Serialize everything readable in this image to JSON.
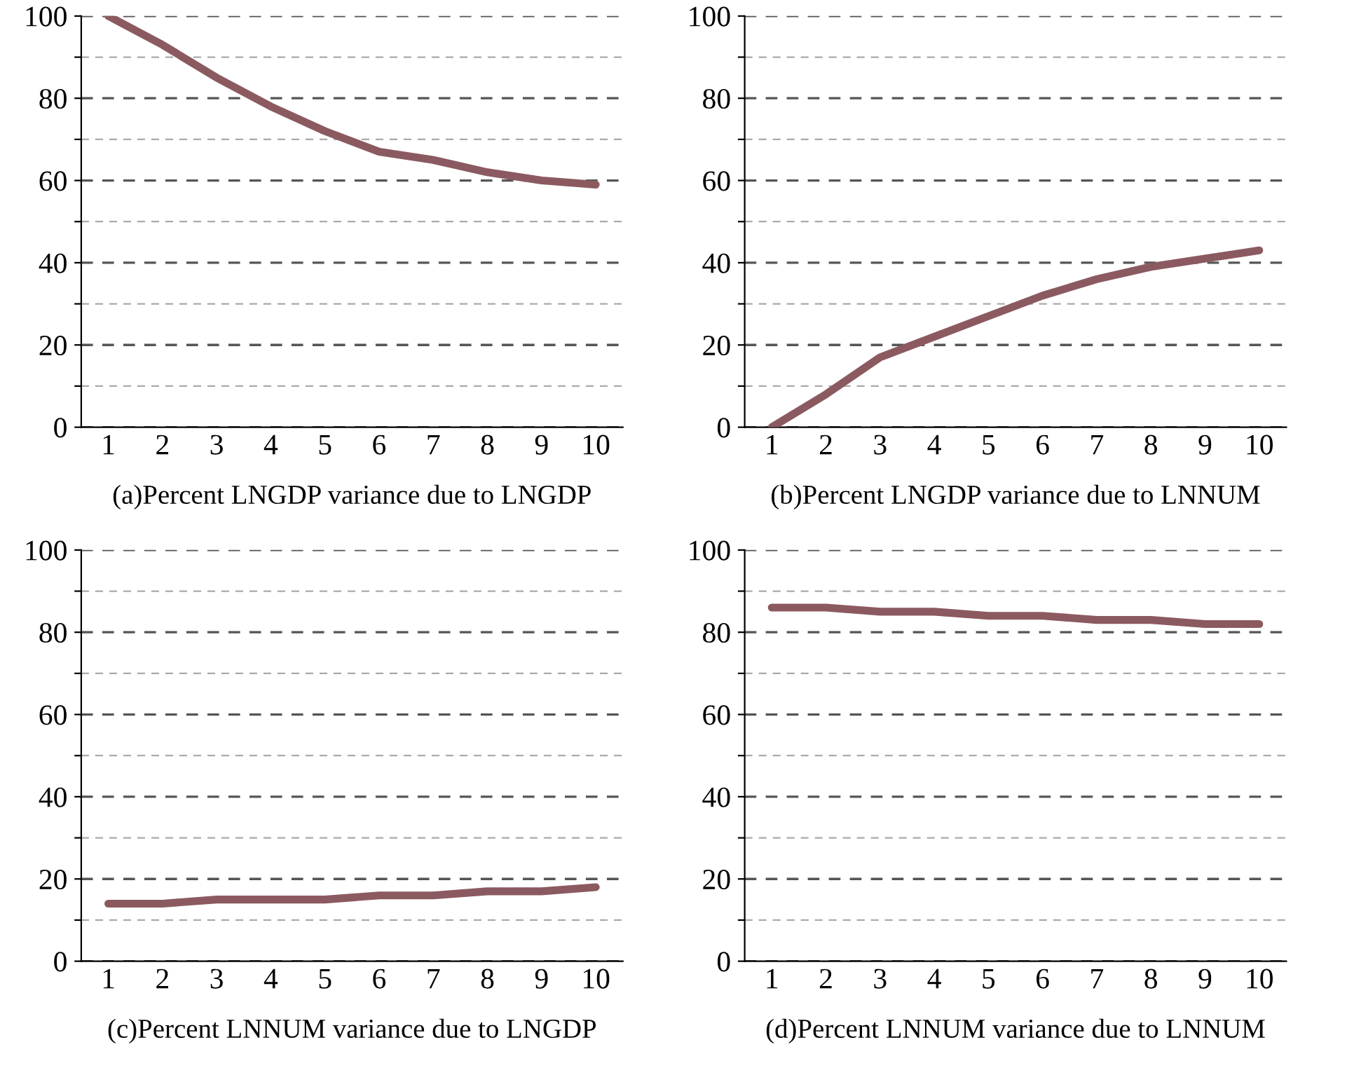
{
  "chart_data": [
    {
      "type": "line",
      "title": "(a)Percent LNGDP variance due to LNGDP",
      "categories": [
        "1",
        "2",
        "3",
        "4",
        "5",
        "6",
        "7",
        "8",
        "9",
        "10"
      ],
      "series": [
        {
          "color": "#8b5a60",
          "values": [
            100,
            93,
            85,
            78,
            72,
            67,
            65,
            62,
            60,
            59
          ]
        }
      ],
      "ylim": [
        0,
        100
      ],
      "yticks": [
        0,
        {
          "value": 10,
          "label": null
        },
        20,
        {
          "value": 30,
          "label": null
        },
        40,
        {
          "value": 50,
          "label": null
        },
        60,
        {
          "value": 70,
          "label": null
        },
        80,
        {
          "value": 90,
          "label": null
        },
        100
      ],
      "grid": "y",
      "line_style": "solid"
    },
    {
      "type": "line",
      "title": "(b)Percent LNGDP variance due to LNNUM",
      "categories": [
        "1",
        "2",
        "3",
        "4",
        "5",
        "6",
        "7",
        "8",
        "9",
        "10"
      ],
      "series": [
        {
          "color": "#8b5a60",
          "values": [
            0,
            8,
            17,
            22,
            27,
            32,
            36,
            39,
            41,
            43
          ]
        }
      ],
      "ylim": [
        0,
        100
      ],
      "yticks": [
        0,
        {
          "value": 10,
          "label": null
        },
        20,
        {
          "value": 30,
          "label": null
        },
        40,
        {
          "value": 50,
          "label": null
        },
        60,
        {
          "value": 70,
          "label": null
        },
        80,
        {
          "value": 90,
          "label": null
        },
        100
      ],
      "grid": "y",
      "line_style": "solid"
    },
    {
      "type": "line",
      "title": "(c)Percent LNNUM variance due to LNGDP",
      "categories": [
        "1",
        "2",
        "3",
        "4",
        "5",
        "6",
        "7",
        "8",
        "9",
        "10"
      ],
      "series": [
        {
          "color": "#8b5a60",
          "values": [
            14,
            14,
            15,
            15,
            15,
            16,
            16,
            17,
            17,
            18
          ]
        }
      ],
      "ylim": [
        0,
        100
      ],
      "yticks": [
        0,
        {
          "value": 10,
          "label": null
        },
        20,
        {
          "value": 30,
          "label": null
        },
        40,
        {
          "value": 50,
          "label": null
        },
        60,
        {
          "value": 70,
          "label": null
        },
        80,
        {
          "value": 90,
          "label": null
        },
        100
      ],
      "grid": "y",
      "line_style": "solid"
    },
    {
      "type": "line",
      "title": "(d)Percent LNNUM variance due to LNNUM",
      "categories": [
        "1",
        "2",
        "3",
        "4",
        "5",
        "6",
        "7",
        "8",
        "9",
        "10"
      ],
      "series": [
        {
          "color": "#8b5a60",
          "values": [
            86,
            86,
            85,
            85,
            84,
            84,
            83,
            83,
            82,
            82
          ]
        }
      ],
      "ylim": [
        0,
        100
      ],
      "yticks": [
        0,
        {
          "value": 10,
          "label": null
        },
        20,
        {
          "value": 30,
          "label": null
        },
        40,
        {
          "value": 50,
          "label": null
        },
        60,
        {
          "value": 70,
          "label": null
        },
        80,
        {
          "value": 90,
          "label": null
        },
        100
      ],
      "grid": "y",
      "line_style": "solid"
    }
  ]
}
